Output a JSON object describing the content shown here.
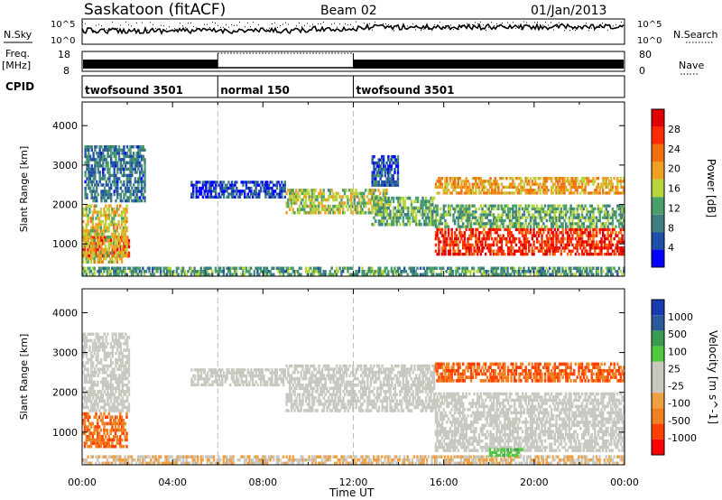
{
  "header": {
    "station": "Saskatoon (fitACF)",
    "beam": "Beam 02",
    "date": "01/Jan/2013"
  },
  "aux_panels": {
    "nsky_label": "N.Sky",
    "nsky_ticks": [
      "10^5",
      "10^0"
    ],
    "nsearch_label": "N.Search",
    "freq_label": "Freq.",
    "freq_unit": "[MHz]",
    "freq_ticks": [
      "18",
      "8"
    ],
    "nave_label": "Nave",
    "nave_ticks": [
      "80",
      "0"
    ],
    "cpid_label": "CPID",
    "cpid_modes": [
      {
        "name": "twofsound 3501",
        "start": 0,
        "end": 6
      },
      {
        "name": "normal 150",
        "start": 6,
        "end": 12
      },
      {
        "name": "twofsound 3501",
        "start": 12,
        "end": 24
      }
    ]
  },
  "colors": {
    "power_scale": [
      "#0000ff",
      "#1f4fa8",
      "#3f7e7e",
      "#4aa06c",
      "#b8d43c",
      "#f0a020",
      "#f07010",
      "#ff2a00",
      "#e00000"
    ],
    "velocity_scale": [
      "#ff0000",
      "#ff4000",
      "#f08020",
      "#f0a040",
      "#c8c8c0",
      "#c8c8c0",
      "#50c840",
      "#3a9a50",
      "#2a5a9a",
      "#1a3ab0"
    ]
  },
  "chart_data": [
    {
      "type": "heatmap",
      "name": "power",
      "ylabel": "Slant Range [km]",
      "xlabel": "Time UT",
      "xlim": [
        0,
        24
      ],
      "ylim": [
        180,
        4600
      ],
      "x_ticks": [
        "00:00",
        "04:00",
        "08:00",
        "12:00",
        "16:00",
        "20:00",
        "00:00"
      ],
      "y_ticks": [
        1000,
        2000,
        3000,
        4000
      ],
      "colorbar_label": "Power [dB]",
      "colorbar_ticks": [
        "4",
        "8",
        "12",
        "16",
        "20",
        "24",
        "28"
      ],
      "regions": [
        {
          "t0": 0.0,
          "t1": 2.1,
          "r0": 650,
          "r1": 1200,
          "level": 0.92
        },
        {
          "t0": 0.0,
          "t1": 2.0,
          "r0": 500,
          "r1": 2000,
          "level": 0.55
        },
        {
          "t0": 0.1,
          "t1": 2.8,
          "r0": 2050,
          "r1": 3500,
          "level": 0.25
        },
        {
          "t0": 4.8,
          "t1": 9.0,
          "r0": 2150,
          "r1": 2600,
          "level": 0.15
        },
        {
          "t0": 9.0,
          "t1": 13.5,
          "r0": 1750,
          "r1": 2400,
          "level": 0.48
        },
        {
          "t0": 12.8,
          "t1": 15.6,
          "r0": 1450,
          "r1": 2200,
          "level": 0.4
        },
        {
          "t0": 12.8,
          "t1": 14.0,
          "r0": 2450,
          "r1": 3250,
          "level": 0.2
        },
        {
          "t0": 15.6,
          "t1": 24.0,
          "r0": 700,
          "r1": 1400,
          "level": 0.85
        },
        {
          "t0": 15.6,
          "t1": 24.0,
          "r0": 1400,
          "r1": 2000,
          "level": 0.4
        },
        {
          "t0": 15.6,
          "t1": 24.0,
          "r0": 2250,
          "r1": 2700,
          "level": 0.62
        },
        {
          "t0": 0.0,
          "t1": 24.0,
          "r0": 180,
          "r1": 420,
          "level": 0.35
        }
      ]
    },
    {
      "type": "heatmap",
      "name": "velocity",
      "ylabel": "Slant Range [km]",
      "xlabel": "Time UT",
      "xlim": [
        0,
        24
      ],
      "ylim": [
        180,
        4600
      ],
      "x_ticks": [
        "00:00",
        "04:00",
        "08:00",
        "12:00",
        "16:00",
        "20:00",
        "00:00"
      ],
      "y_ticks": [
        1000,
        2000,
        3000,
        4000
      ],
      "colorbar_label": "Velocity [m s^-1]",
      "colorbar_ticks": [
        "1000",
        "500",
        "100",
        "25",
        "-25",
        "-100",
        "-500",
        "-1000"
      ],
      "regions": [
        {
          "t0": 0.0,
          "t1": 2.0,
          "r0": 600,
          "r1": 1500,
          "level": 0.22
        },
        {
          "t0": 0.0,
          "t1": 2.1,
          "r0": 1500,
          "r1": 3500,
          "level": 0.47
        },
        {
          "t0": 4.8,
          "t1": 9.0,
          "r0": 2150,
          "r1": 2600,
          "level": 0.47
        },
        {
          "t0": 9.0,
          "t1": 15.6,
          "r0": 1500,
          "r1": 2700,
          "level": 0.47
        },
        {
          "t0": 15.6,
          "t1": 24.0,
          "r0": 500,
          "r1": 2000,
          "level": 0.47
        },
        {
          "t0": 15.6,
          "t1": 24.0,
          "r0": 2250,
          "r1": 2750,
          "level": 0.2
        },
        {
          "t0": 0.0,
          "t1": 24.0,
          "r0": 180,
          "r1": 420,
          "level": 0.4
        },
        {
          "t0": 18.0,
          "t1": 19.5,
          "r0": 380,
          "r1": 600,
          "level": 0.65
        }
      ]
    }
  ]
}
